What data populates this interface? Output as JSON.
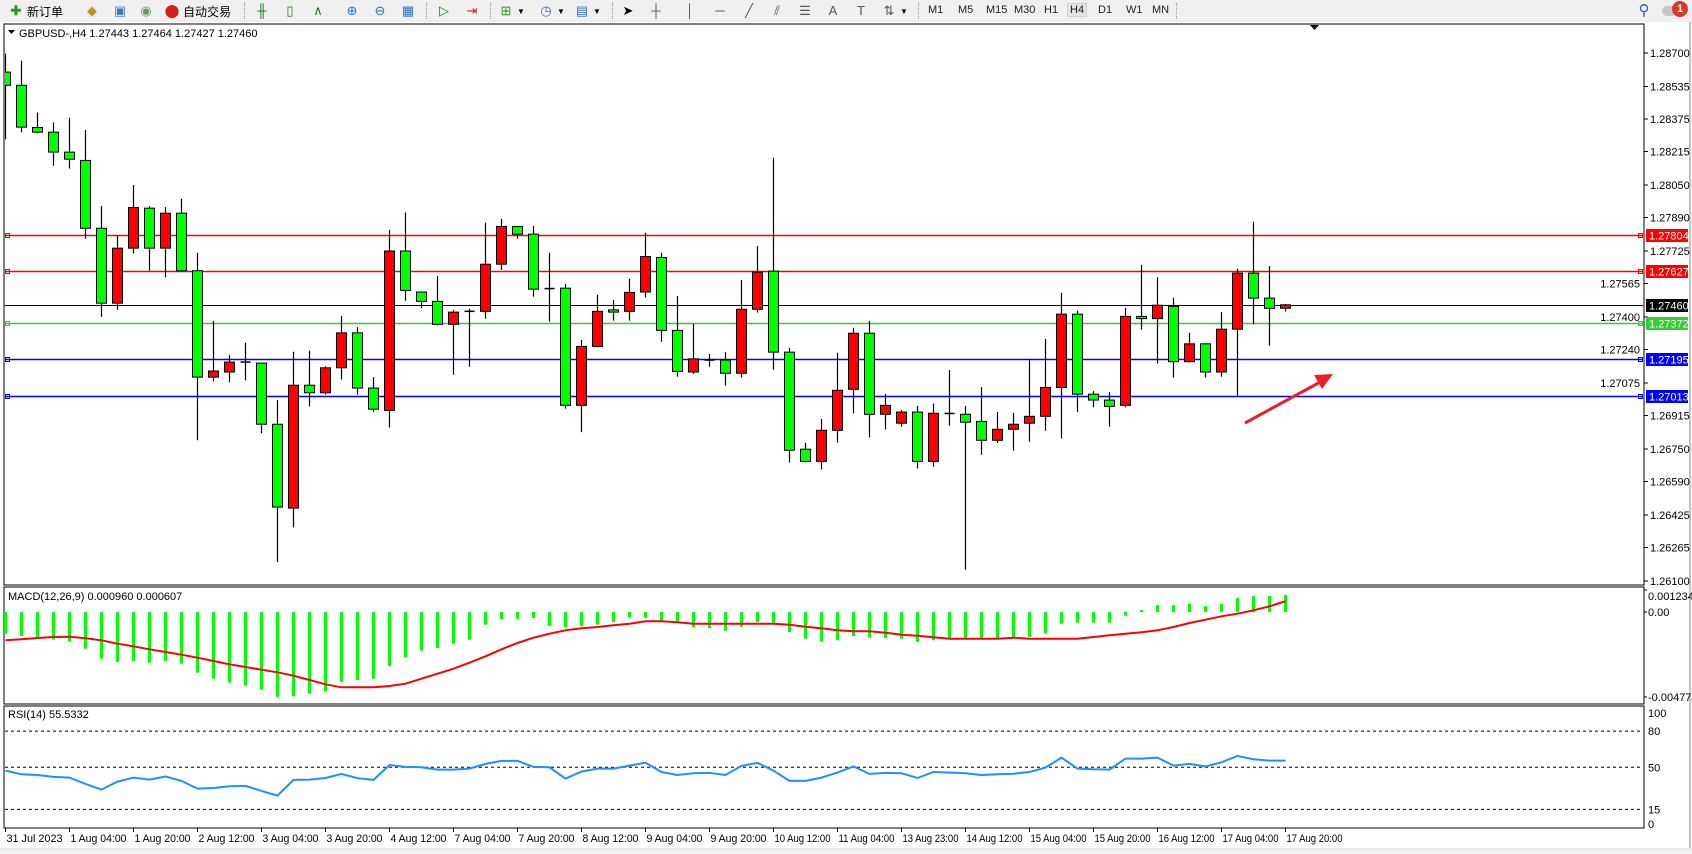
{
  "toolbar": {
    "new_order": {
      "label": "新订单",
      "icon": "new-order-icon"
    },
    "auto_trading": {
      "label": "自动交易",
      "icon": "auto-trading-icon"
    },
    "timeframes": [
      "M1",
      "M5",
      "M15",
      "M30",
      "H1",
      "H4",
      "D1",
      "W1",
      "MN"
    ],
    "active_timeframe": "H4",
    "notification_count": "1"
  },
  "chart": {
    "header": "GBPUSD-,H4  1.27443 1.27464 1.27427 1.27460",
    "bull_color": "#ff0000",
    "bear_color": "#00ff00",
    "price_ticks": [
      "1.28700",
      "1.28535",
      "1.28375",
      "1.28215",
      "1.28050",
      "1.27890",
      "1.27725",
      "1.27565",
      "1.27400",
      "1.27240",
      "1.27075",
      "1.26915",
      "1.26750",
      "1.26590",
      "1.26425",
      "1.26265",
      "1.26100"
    ],
    "levels": [
      {
        "value": 1.27804,
        "label": "1.27804",
        "color": "#ff0000"
      },
      {
        "value": 1.27627,
        "label": "1.27627",
        "color": "#ff0000"
      },
      {
        "value": 1.27372,
        "label": "1.27372",
        "color": "#32cd32"
      },
      {
        "value": 1.27195,
        "label": "1.27195",
        "color": "#0000ff"
      },
      {
        "value": 1.27013,
        "label": "1.27013",
        "color": "#0000ff"
      }
    ],
    "current_price": {
      "value": 1.2746,
      "label": "1.27460",
      "color": "#000000"
    },
    "annotation_arrow_color": "#e8202a",
    "candles_ohlc": [
      [
        1.28606,
        1.28697,
        1.28275,
        1.28541
      ],
      [
        1.28541,
        1.28662,
        1.2831,
        1.28335
      ],
      [
        1.28333,
        1.28407,
        1.28305,
        1.2831
      ],
      [
        1.2831,
        1.28358,
        1.28145,
        1.28212
      ],
      [
        1.28212,
        1.28381,
        1.28131,
        1.28177
      ],
      [
        1.28171,
        1.28321,
        1.27786,
        1.27837
      ],
      [
        1.27837,
        1.27946,
        1.27401,
        1.27468
      ],
      [
        1.27468,
        1.278,
        1.27436,
        1.27739
      ],
      [
        1.27739,
        1.2805,
        1.27713,
        1.27939
      ],
      [
        1.27936,
        1.27946,
        1.27628,
        1.27739
      ],
      [
        1.27739,
        1.27941,
        1.27595,
        1.27911
      ],
      [
        1.27911,
        1.27982,
        1.27628,
        1.27628
      ],
      [
        1.27628,
        1.27716,
        1.26793,
        1.27104
      ],
      [
        1.27104,
        1.2738,
        1.27083,
        1.27134
      ],
      [
        1.27129,
        1.27213,
        1.27079,
        1.27178
      ],
      [
        1.27178,
        1.27273,
        1.27088,
        1.27179
      ],
      [
        1.27173,
        1.27173,
        1.26828,
        1.26872
      ],
      [
        1.26872,
        1.26991,
        1.26193,
        1.26464
      ],
      [
        1.26459,
        1.27229,
        1.26365,
        1.27064
      ],
      [
        1.27064,
        1.27234,
        1.2696,
        1.27027
      ],
      [
        1.27027,
        1.27158,
        1.27018,
        1.2715
      ],
      [
        1.2715,
        1.27405,
        1.27092,
        1.27322
      ],
      [
        1.27322,
        1.2735,
        1.27018,
        1.2705
      ],
      [
        1.2705,
        1.27104,
        1.26933,
        1.26946
      ],
      [
        1.2694,
        1.27829,
        1.26856,
        1.27725
      ],
      [
        1.27725,
        1.27915,
        1.2748,
        1.27531
      ],
      [
        1.27523,
        1.27523,
        1.27443,
        1.27477
      ],
      [
        1.27477,
        1.27602,
        1.27359,
        1.27364
      ],
      [
        1.27364,
        1.27435,
        1.27116,
        1.27424
      ],
      [
        1.27428,
        1.2744,
        1.27155,
        1.27429
      ],
      [
        1.27428,
        1.27864,
        1.27392,
        1.2766
      ],
      [
        1.2766,
        1.27883,
        1.27632,
        1.27846
      ],
      [
        1.27846,
        1.27846,
        1.27786,
        1.27808
      ],
      [
        1.27808,
        1.27848,
        1.275,
        1.27537
      ],
      [
        1.2754,
        1.27716,
        1.27377,
        1.2754
      ],
      [
        1.27542,
        1.27563,
        1.26949,
        1.26965
      ],
      [
        1.26965,
        1.27287,
        1.26833,
        1.27255
      ],
      [
        1.27255,
        1.27509,
        1.2725,
        1.27428
      ],
      [
        1.27435,
        1.27484,
        1.27382,
        1.27424
      ],
      [
        1.27428,
        1.27588,
        1.27382,
        1.27521
      ],
      [
        1.27523,
        1.27815,
        1.27496,
        1.27698
      ],
      [
        1.27693,
        1.27716,
        1.27278,
        1.27334
      ],
      [
        1.27334,
        1.27503,
        1.27106,
        1.27132
      ],
      [
        1.27129,
        1.27366,
        1.2712,
        1.27194
      ],
      [
        1.27188,
        1.27218,
        1.27155,
        1.27188
      ],
      [
        1.27188,
        1.27227,
        1.27062,
        1.27123
      ],
      [
        1.27123,
        1.27582,
        1.27102,
        1.27438
      ],
      [
        1.27438,
        1.27749,
        1.27422,
        1.27621
      ],
      [
        1.27626,
        1.28184,
        1.27141,
        1.27227
      ],
      [
        1.27227,
        1.27248,
        1.26684,
        1.26744
      ],
      [
        1.26749,
        1.2678,
        1.26684,
        1.26689
      ],
      [
        1.26689,
        1.26898,
        1.26649,
        1.26842
      ],
      [
        1.26842,
        1.27224,
        1.26782,
        1.27039
      ],
      [
        1.27044,
        1.27347,
        1.26925,
        1.2732
      ],
      [
        1.2732,
        1.2738,
        1.26807,
        1.26921
      ],
      [
        1.26921,
        1.27021,
        1.26846,
        1.26965
      ],
      [
        1.26877,
        1.26942,
        1.2686,
        1.26932
      ],
      [
        1.26932,
        1.26962,
        1.26654,
        1.26689
      ],
      [
        1.26689,
        1.26974,
        1.26663,
        1.26926
      ],
      [
        1.26925,
        1.27139,
        1.26865,
        1.26925
      ],
      [
        1.26921,
        1.26962,
        1.26156,
        1.26882
      ],
      [
        1.26886,
        1.27055,
        1.26722,
        1.26793
      ],
      [
        1.26793,
        1.26932,
        1.2678,
        1.26847
      ],
      [
        1.26847,
        1.26928,
        1.26742,
        1.26872
      ],
      [
        1.26877,
        1.2719,
        1.26786,
        1.26911
      ],
      [
        1.26911,
        1.27292,
        1.2684,
        1.27053
      ],
      [
        1.27053,
        1.27519,
        1.26802,
        1.27414
      ],
      [
        1.27414,
        1.27431,
        1.26933,
        1.2702
      ],
      [
        1.2702,
        1.27035,
        1.26956,
        1.26991
      ],
      [
        1.26991,
        1.2703,
        1.2686,
        1.2696
      ],
      [
        1.26965,
        1.27445,
        1.26955,
        1.27403
      ],
      [
        1.27403,
        1.27656,
        1.27338,
        1.27392
      ],
      [
        1.27392,
        1.27596,
        1.27171,
        1.27458
      ],
      [
        1.27452,
        1.27494,
        1.27102,
        1.2718
      ],
      [
        1.2718,
        1.27322,
        1.27176,
        1.27268
      ],
      [
        1.27268,
        1.27268,
        1.27102,
        1.27129
      ],
      [
        1.27129,
        1.27424,
        1.27106,
        1.2734
      ],
      [
        1.2734,
        1.27637,
        1.27013,
        1.27616
      ],
      [
        1.27616,
        1.27869,
        1.27364,
        1.27493
      ],
      [
        1.27493,
        1.27651,
        1.27259,
        1.27443
      ],
      [
        1.27443,
        1.27464,
        1.27427,
        1.2746
      ]
    ],
    "time_labels": [
      "31 Jul 2023",
      "1 Aug 04:00",
      "1 Aug 20:00",
      "2 Aug 12:00",
      "3 Aug 04:00",
      "3 Aug 20:00",
      "4 Aug 12:00",
      "7 Aug 04:00",
      "7 Aug 20:00",
      "8 Aug 12:00",
      "9 Aug 04:00",
      "9 Aug 20:00",
      "10 Aug 12:00",
      "11 Aug 04:00",
      "13 Aug 23:00",
      "14 Aug 12:00",
      "15 Aug 04:00",
      "15 Aug 20:00",
      "16 Aug 12:00",
      "17 Aug 04:00",
      "17 Aug 20:00"
    ]
  },
  "macd": {
    "header": "MACD(12,26,9) 0.000960 0.000607",
    "scale_labels": {
      "max": "0.001234",
      "zero": "0.00",
      "min": "-0.004774"
    },
    "histogram_color": "#00ff00",
    "signal_color": "#ff0000",
    "main": [
      -0.001217,
      -0.001349,
      -0.001442,
      -0.001555,
      -0.001667,
      -0.00206,
      -0.002622,
      -0.00281,
      -0.002753,
      -0.002847,
      -0.002753,
      -0.002903,
      -0.003409,
      -0.003746,
      -0.003971,
      -0.004139,
      -0.004364,
      -0.00477,
      -0.004739,
      -0.004589,
      -0.004458,
      -0.003933,
      -0.003821,
      -0.003746,
      -0.003034,
      -0.002529,
      -0.002173,
      -0.002023,
      -0.001779,
      -0.001555,
      -0.000712,
      -0.000393,
      -0.000375,
      -0.000337,
      -0.000787,
      -0.000843,
      -0.000787,
      -0.000712,
      -0.000562,
      -0.000318,
      -0.000318,
      -0.000468,
      -0.000524,
      -0.000843,
      -0.000899,
      -0.001049,
      -0.000824,
      -0.000562,
      -0.000599,
      -0.001124,
      -0.001498,
      -0.001667,
      -0.001592,
      -0.001349,
      -0.001442,
      -0.001461,
      -0.001498,
      -0.001686,
      -0.001592,
      -0.001536,
      -0.001536,
      -0.001536,
      -0.001536,
      -0.001405,
      -0.001405,
      -0.00118,
      -0.000656,
      -0.000599,
      -0.000599,
      -0.000599,
      -0.000206,
      0.000112,
      0.000393,
      0.000393,
      0.000468,
      0.000337,
      0.00045,
      0.000787,
      0.000899,
      0.000899,
      0.00096
    ],
    "signal": [
      -0.001592,
      -0.001536,
      -0.001461,
      -0.001405,
      -0.001386,
      -0.00148,
      -0.001592,
      -0.001779,
      -0.001929,
      -0.002098,
      -0.002248,
      -0.002397,
      -0.002566,
      -0.002753,
      -0.002941,
      -0.00309,
      -0.00324,
      -0.00339,
      -0.003577,
      -0.003821,
      -0.004064,
      -0.004233,
      -0.004233,
      -0.004233,
      -0.004158,
      -0.004027,
      -0.003746,
      -0.003465,
      -0.003184,
      -0.002847,
      -0.002491,
      -0.002098,
      -0.001742,
      -0.001442,
      -0.001217,
      -0.00103,
      -0.000918,
      -0.000843,
      -0.000749,
      -0.000656,
      -0.000524,
      -0.000524,
      -0.000581,
      -0.000656,
      -0.000656,
      -0.000656,
      -0.000656,
      -0.000656,
      -0.000656,
      -0.000712,
      -0.000824,
      -0.000918,
      -0.00103,
      -0.001086,
      -0.001086,
      -0.001161,
      -0.001274,
      -0.00133,
      -0.001423,
      -0.001498,
      -0.001498,
      -0.001498,
      -0.001498,
      -0.001442,
      -0.001498,
      -0.001498,
      -0.001498,
      -0.001498,
      -0.001405,
      -0.001311,
      -0.001217,
      -0.001143,
      -0.00103,
      -0.000843,
      -0.000618,
      -0.000431,
      -0.000243,
      -9.4e-05,
      9.4e-05,
      0.000318,
      0.000607
    ]
  },
  "rsi": {
    "header": "RSI(14) 55.5332",
    "scale_labels": [
      "100",
      "80",
      "50",
      "15",
      "0"
    ],
    "levels": [
      80,
      50,
      15
    ],
    "line_color": "#1e90ff",
    "values": [
      47.2,
      44.2,
      43.6,
      42.0,
      41.4,
      36.2,
      31.5,
      38.1,
      41.4,
      39.8,
      42.3,
      38.7,
      32.3,
      32.8,
      34.2,
      34.5,
      30.4,
      26.5,
      39.5,
      39.8,
      41.1,
      44.5,
      40.9,
      39.5,
      51.9,
      50.3,
      50.0,
      48.1,
      48.1,
      48.9,
      52.8,
      55.3,
      55.3,
      50.3,
      50.0,
      40.6,
      46.4,
      48.9,
      48.9,
      51.4,
      53.8,
      46.1,
      43.6,
      45.0,
      45.3,
      43.6,
      51.1,
      53.6,
      47.2,
      38.7,
      38.7,
      41.4,
      45.6,
      50.6,
      44.5,
      45.3,
      45.0,
      41.1,
      46.1,
      45.6,
      45.0,
      43.6,
      44.2,
      44.7,
      46.1,
      49.7,
      58.0,
      48.9,
      48.3,
      48.1,
      57.2,
      57.2,
      58.0,
      51.4,
      52.8,
      50.6,
      54.1,
      59.4,
      56.6,
      55.5,
      55.5332
    ]
  }
}
